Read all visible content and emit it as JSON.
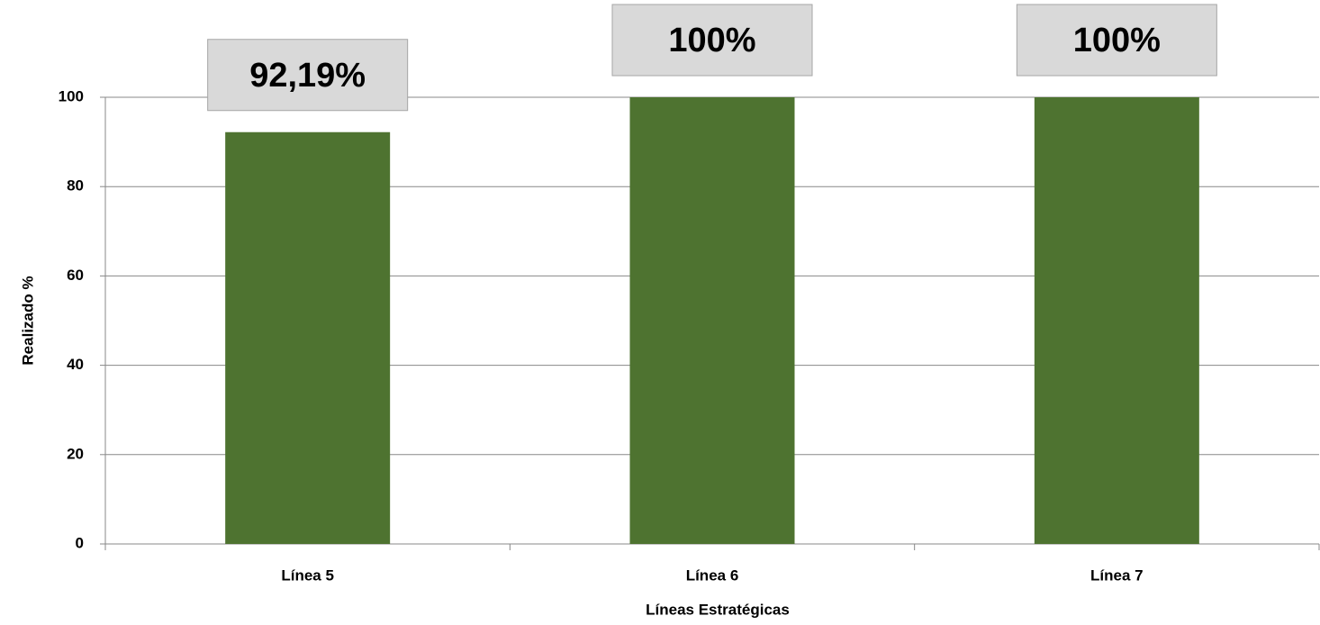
{
  "chart_data": {
    "type": "bar",
    "categories": [
      "Línea 5",
      "Línea 6",
      "Línea 7"
    ],
    "values": [
      92.19,
      100,
      100
    ],
    "value_labels": [
      "92,19%",
      "100%",
      "100%"
    ],
    "color": "#4e7330",
    "xlabel": "Líneas Estratégicas",
    "ylabel": "Realizado %",
    "ylim": [
      0,
      100
    ],
    "yticks": [
      0,
      20,
      40,
      60,
      80,
      100
    ],
    "grid": true
  }
}
